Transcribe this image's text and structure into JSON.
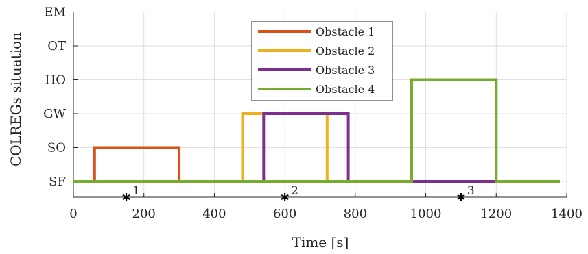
{
  "chart_data": {
    "type": "line",
    "title": "",
    "xlabel": "Time [s]",
    "ylabel": "COLREGs situation",
    "xlim": [
      0,
      1400
    ],
    "xticks": [
      "0",
      "200",
      "400",
      "600",
      "800",
      "1000",
      "1200",
      "1400"
    ],
    "categories_y": [
      "SF",
      "SO",
      "GW",
      "HO",
      "OT",
      "EM"
    ],
    "grid": true,
    "legend_position": "top-center",
    "series": [
      {
        "name": "Obstacle 1",
        "color": "#D95319",
        "points": [
          [
            0,
            "SF"
          ],
          [
            60,
            "SF"
          ],
          [
            60,
            "SO"
          ],
          [
            300,
            "SO"
          ],
          [
            300,
            "SF"
          ],
          [
            1380,
            "SF"
          ]
        ]
      },
      {
        "name": "Obstacle 2",
        "color": "#EDB120",
        "points": [
          [
            0,
            "SF"
          ],
          [
            480,
            "SF"
          ],
          [
            480,
            "GW"
          ],
          [
            720,
            "GW"
          ],
          [
            720,
            "SF"
          ],
          [
            1380,
            "SF"
          ]
        ]
      },
      {
        "name": "Obstacle 3",
        "color": "#7E2F8E",
        "points": [
          [
            0,
            "SF"
          ],
          [
            540,
            "SF"
          ],
          [
            540,
            "GW"
          ],
          [
            780,
            "GW"
          ],
          [
            780,
            "SF"
          ],
          [
            1380,
            "SF"
          ]
        ]
      },
      {
        "name": "Obstacle 4",
        "color": "#77AC30",
        "points": [
          [
            0,
            "SF"
          ],
          [
            960,
            "SF"
          ],
          [
            960,
            "HO"
          ],
          [
            1200,
            "HO"
          ],
          [
            1200,
            "SF"
          ],
          [
            1380,
            "SF"
          ]
        ]
      }
    ],
    "markers": [
      {
        "x": 150,
        "label": "1"
      },
      {
        "x": 600,
        "label": "2"
      },
      {
        "x": 1100,
        "label": "3"
      }
    ]
  }
}
